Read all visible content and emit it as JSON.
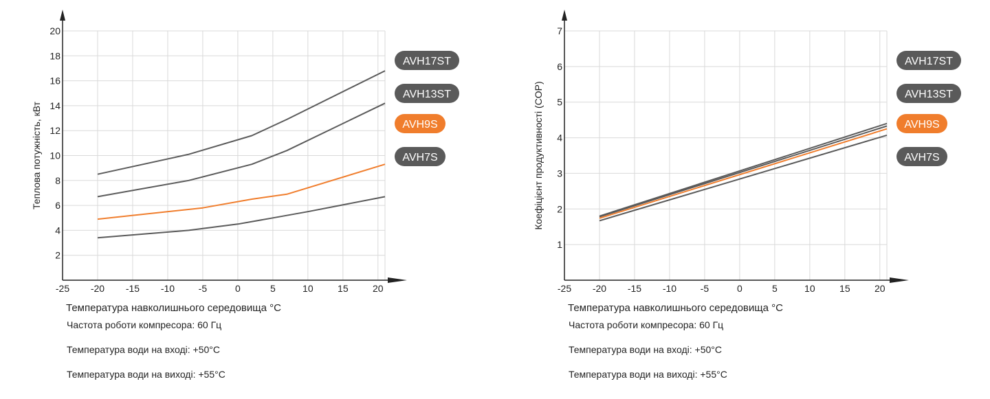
{
  "colors": {
    "gray": "#5a5a5a",
    "orange": "#f07d2c",
    "grid": "#d9d9d9",
    "axis": "#222222"
  },
  "notes": [
    "Частота роботи компресора: 60 Гц",
    "Температура води на вході: +50°C",
    "Температура води на виході: +55°C"
  ],
  "chart_data": [
    {
      "type": "line",
      "title": "",
      "xlabel": "Температура навколишнього середовища °C",
      "ylabel": "Теплова потужність, кВт",
      "xlim": [
        -25,
        21
      ],
      "ylim": [
        0,
        20
      ],
      "x_ticks": [
        -25,
        -20,
        -15,
        -10,
        -5,
        0,
        5,
        10,
        15,
        20
      ],
      "y_ticks": [
        2,
        4,
        6,
        8,
        10,
        12,
        14,
        16,
        18,
        20
      ],
      "grid": true,
      "legend_position": "right",
      "series": [
        {
          "name": "AVH17ST",
          "color": "#5a5a5a",
          "x": [
            -20,
            -7,
            2,
            7,
            21
          ],
          "y": [
            8.5,
            10.1,
            11.6,
            12.9,
            16.8
          ]
        },
        {
          "name": "AVH13ST",
          "color": "#5a5a5a",
          "x": [
            -20,
            -7,
            2,
            7,
            21
          ],
          "y": [
            6.7,
            8.0,
            9.3,
            10.4,
            14.2
          ]
        },
        {
          "name": "AVH9S",
          "color": "#f07d2c",
          "x": [
            -20,
            -5,
            2,
            7,
            21
          ],
          "y": [
            4.9,
            5.8,
            6.5,
            6.9,
            9.3
          ]
        },
        {
          "name": "AVH7S",
          "color": "#5a5a5a",
          "x": [
            -20,
            -7,
            0,
            5,
            10,
            21
          ],
          "y": [
            3.4,
            4.0,
            4.5,
            5.0,
            5.5,
            6.7
          ]
        }
      ]
    },
    {
      "type": "line",
      "title": "",
      "xlabel": "Температура навколишнього середовища °C",
      "ylabel": "Коефіцієнт продуктивності (COP)",
      "xlim": [
        -25,
        21
      ],
      "ylim": [
        0,
        7
      ],
      "x_ticks": [
        -25,
        -20,
        -15,
        -10,
        -5,
        0,
        5,
        10,
        15,
        20
      ],
      "y_ticks": [
        1,
        2,
        3,
        4,
        5,
        6,
        7
      ],
      "grid": true,
      "legend_position": "right",
      "series": [
        {
          "name": "AVH17ST",
          "color": "#5a5a5a",
          "x": [
            -20,
            21
          ],
          "y": [
            1.8,
            4.4
          ]
        },
        {
          "name": "AVH13ST",
          "color": "#5a5a5a",
          "x": [
            -20,
            21
          ],
          "y": [
            1.78,
            4.33
          ]
        },
        {
          "name": "AVH9S",
          "color": "#f07d2c",
          "x": [
            -20,
            21
          ],
          "y": [
            1.74,
            4.25
          ]
        },
        {
          "name": "AVH7S",
          "color": "#5a5a5a",
          "x": [
            -20,
            21
          ],
          "y": [
            1.67,
            4.07
          ]
        }
      ]
    }
  ]
}
